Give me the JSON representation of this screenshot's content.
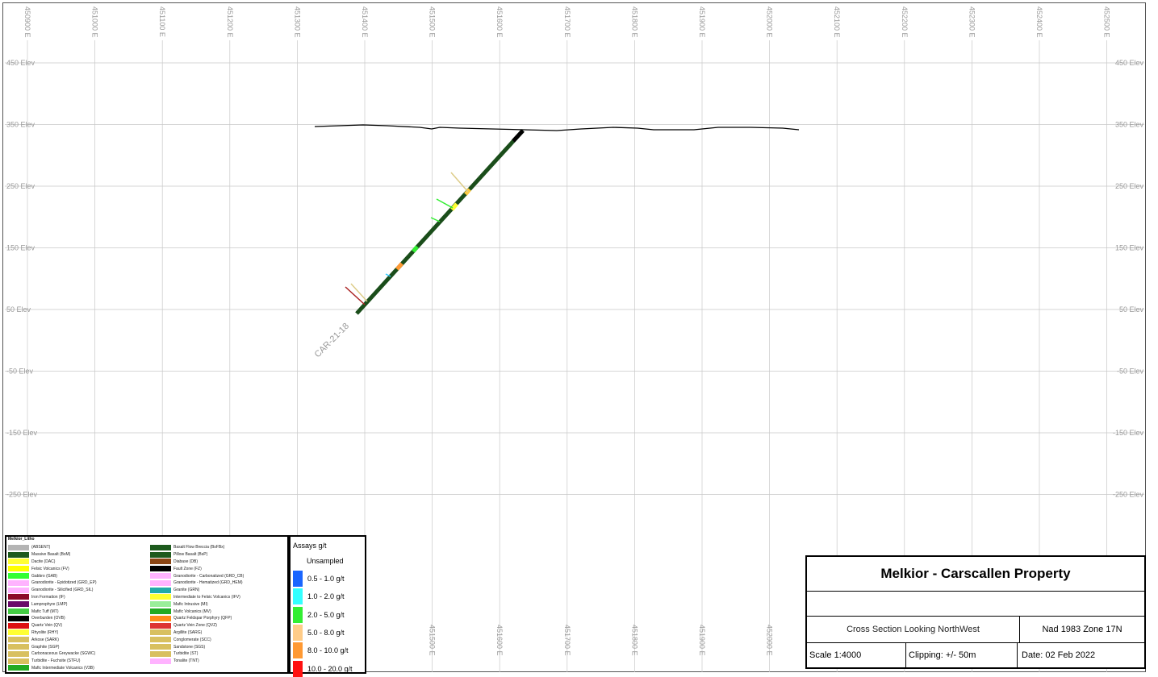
{
  "map": {
    "top_axis_labels": [
      "450900 E",
      "451000 E",
      "451100 E",
      "451200 E",
      "451300 E",
      "451400 E",
      "451500 E",
      "451600 E",
      "451700 E",
      "451800 E",
      "451900 E",
      "452000 E",
      "452100 E",
      "452200 E",
      "452300 E",
      "452400 E",
      "452500 E"
    ],
    "bottom_axis_labels": [
      "451500 E",
      "451600 E",
      "451700 E",
      "451800 E",
      "451900 E",
      "452000 E"
    ],
    "elevation_labels": [
      "450 Elev",
      "350 Elev",
      "250 Elev",
      "150 Elev",
      "50 Elev",
      "-50 Elev",
      "-150 Elev",
      "-250 Elev"
    ],
    "hole_label": "CAR-21-18",
    "colors": {
      "grid": "#c8c8c8",
      "hole": "#1a4d1a",
      "topography": "#000000"
    }
  },
  "legend": {
    "title": "Melkior_Litho",
    "col1": [
      {
        "label": "(ABSENT)",
        "color": "#b4b4b4"
      },
      {
        "label": "Massive Basalt (BsM)",
        "color": "#1d5a1d"
      },
      {
        "label": "Dacite (DAC)",
        "color": "#ffff33"
      },
      {
        "label": "Felsic Volcanics (FV)",
        "color": "#ffff00"
      },
      {
        "label": "Gabbro (GAB)",
        "color": "#33ff33"
      },
      {
        "label": "Granodiorite - Epidotized (GRD_EP)",
        "color": "#ffb3ff"
      },
      {
        "label": "Granodiorite - Silicified (GRD_SIL)",
        "color": "#ffb3ff"
      },
      {
        "label": "Iron Formation (IF)",
        "color": "#8b0a2a"
      },
      {
        "label": "Lamprophyre (LMP)",
        "color": "#6a0a6a"
      },
      {
        "label": "Mafic Tuff (MT)",
        "color": "#44cc44"
      },
      {
        "label": "Overburden (OVB)",
        "color": "#000000"
      },
      {
        "label": "Quartz Vein (QV)",
        "color": "#dd1111"
      },
      {
        "label": "Rhyolite (RHY)",
        "color": "#ffff33"
      },
      {
        "label": "Arkose (SARK)",
        "color": "#d8c060"
      },
      {
        "label": "Graphite (SGP)",
        "color": "#d8c060"
      },
      {
        "label": "Carbonaceous Greywacke (SGWC)",
        "color": "#d8c060"
      },
      {
        "label": "Turbidite - Fuchsite (STFU)",
        "color": "#d8c060"
      },
      {
        "label": "Mafic Intermediate Volcanics (V3B)",
        "color": "#22aa22"
      }
    ],
    "col2": [
      {
        "label": "Basalt Flow Breccia (BsFBx)",
        "color": "#1d5a1d"
      },
      {
        "label": "Pillow Basalt (BsP)",
        "color": "#1d5a1d"
      },
      {
        "label": "Diabase (DB)",
        "color": "#8b4513"
      },
      {
        "label": "Fault Zone (FZ)",
        "color": "#000000"
      },
      {
        "label": "Granodiorite - Carbonatized (GRD_CB)",
        "color": "#ffb3ff"
      },
      {
        "label": "Granodiorite - Hematized (GRD_HEM)",
        "color": "#ffb3ff"
      },
      {
        "label": "Granite (GRN)",
        "color": "#22aaaa"
      },
      {
        "label": "Intermediate to Felsic Volcanics (IFV)",
        "color": "#ffff33"
      },
      {
        "label": "Mafic Intrusive (MI)",
        "color": "#99ee99"
      },
      {
        "label": "Mafic Volcanics (MV)",
        "color": "#22aa22"
      },
      {
        "label": "Quartz Feldspar Porphyry (QFP)",
        "color": "#ff8c1a"
      },
      {
        "label": "Quartz Vein Zone (QVZ)",
        "color": "#dd3333"
      },
      {
        "label": "Argillite (SARG)",
        "color": "#d8c060"
      },
      {
        "label": "Conglomerate (SCC)",
        "color": "#d8c060"
      },
      {
        "label": "Sandstone (SGS)",
        "color": "#d8c060"
      },
      {
        "label": "Turbidite (ST)",
        "color": "#d8c060"
      },
      {
        "label": "Tonalite (TNT)",
        "color": "#ffb3ff"
      }
    ]
  },
  "assays": {
    "title": "Assays g/t",
    "unsampled_label": "Unsampled",
    "ranges": [
      {
        "label": "0.5 - 1.0 g/t",
        "color": "#1a66ff"
      },
      {
        "label": "1.0 - 2.0 g/t",
        "color": "#33ffff"
      },
      {
        "label": "2.0 - 5.0 g/t",
        "color": "#33ee33"
      },
      {
        "label": "5.0 - 8.0 g/t",
        "color": "#ffcc88"
      },
      {
        "label": "8.0 - 10.0 g/t",
        "color": "#ff9933"
      },
      {
        "label": "10.0 - 20.0 g/t",
        "color": "#ff1111"
      }
    ]
  },
  "title_block": {
    "title": "Melkior - Carscallen Property",
    "subtitle": "",
    "section": "Cross Section Looking NorthWest",
    "datum": "Nad 1983 Zone 17N",
    "scale": "Scale 1:4000",
    "clipping": "Clipping: +/- 50m",
    "date": "Date: 02 Feb 2022"
  }
}
